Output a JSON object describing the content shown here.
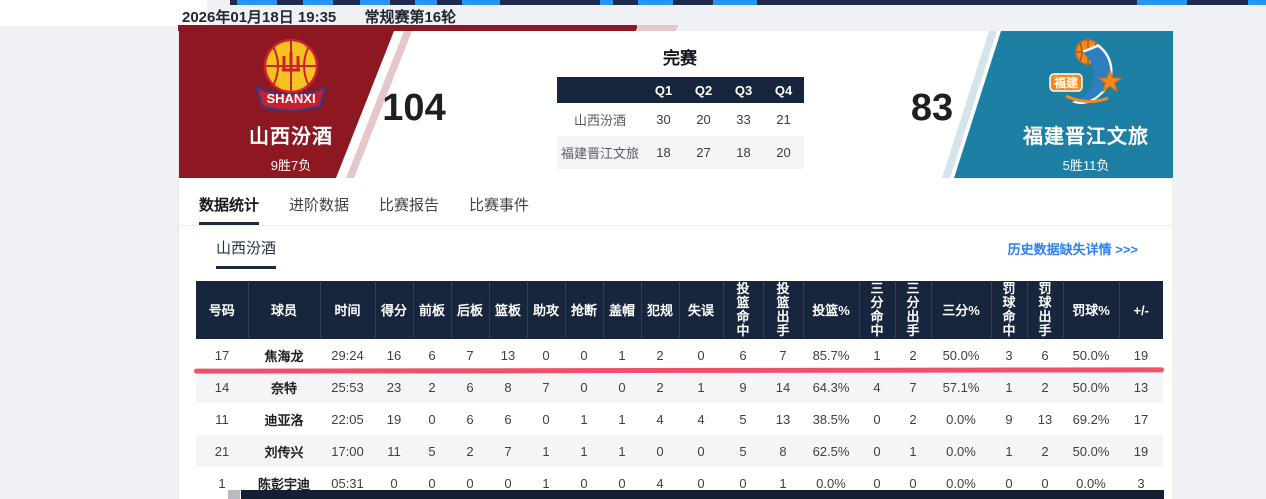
{
  "header": {
    "datetime": "2026年01月18日 19:35",
    "round": "常规赛第16轮"
  },
  "scoreboard": {
    "status": "完赛",
    "home": {
      "name": "山西汾酒",
      "record": "9胜7负",
      "score": "104",
      "logo_text": "SHANXI"
    },
    "away": {
      "name": "福建晋江文旅",
      "record": "5胜11负",
      "score": "83",
      "logo_text": "福建"
    },
    "quarters": {
      "headers": [
        "Q1",
        "Q2",
        "Q3",
        "Q4"
      ],
      "rows": [
        {
          "team": "山西汾酒",
          "scores": [
            "30",
            "20",
            "33",
            "21"
          ]
        },
        {
          "team": "福建晋江文旅",
          "scores": [
            "18",
            "27",
            "18",
            "20"
          ]
        }
      ]
    }
  },
  "tabs": [
    {
      "key": "stats",
      "label": "数据统计",
      "active": true
    },
    {
      "key": "advanced",
      "label": "进阶数据",
      "active": false
    },
    {
      "key": "report",
      "label": "比赛报告",
      "active": false
    },
    {
      "key": "events",
      "label": "比赛事件",
      "active": false
    }
  ],
  "section": {
    "team_tab": "山西汾酒",
    "history_link": "历史数据缺失详情 >>>"
  },
  "stats_table": {
    "columns": [
      "号码",
      "球员",
      "时间",
      "得分",
      "前板",
      "后板",
      "篮板",
      "助攻",
      "抢断",
      "盖帽",
      "犯规",
      "失误",
      "投篮命中",
      "投篮出手",
      "投篮%",
      "三分命中",
      "三分出手",
      "三分%",
      "罚球命中",
      "罚球出手",
      "罚球%",
      "+/-"
    ],
    "rows": [
      [
        "17",
        "焦海龙",
        "29:24",
        "16",
        "6",
        "7",
        "13",
        "0",
        "0",
        "1",
        "2",
        "0",
        "6",
        "7",
        "85.7%",
        "1",
        "2",
        "50.0%",
        "3",
        "6",
        "50.0%",
        "19"
      ],
      [
        "14",
        "奈特",
        "25:53",
        "23",
        "2",
        "6",
        "8",
        "7",
        "0",
        "0",
        "2",
        "1",
        "9",
        "14",
        "64.3%",
        "4",
        "7",
        "57.1%",
        "1",
        "2",
        "50.0%",
        "13"
      ],
      [
        "11",
        "迪亚洛",
        "22:05",
        "19",
        "0",
        "6",
        "6",
        "0",
        "1",
        "1",
        "4",
        "4",
        "5",
        "13",
        "38.5%",
        "0",
        "2",
        "0.0%",
        "9",
        "13",
        "69.2%",
        "17"
      ],
      [
        "21",
        "刘传兴",
        "17:00",
        "11",
        "5",
        "2",
        "7",
        "1",
        "1",
        "1",
        "0",
        "0",
        "5",
        "8",
        "62.5%",
        "0",
        "1",
        "0.0%",
        "1",
        "2",
        "50.0%",
        "19"
      ],
      [
        "1",
        "陈彭宇迪",
        "05:31",
        "0",
        "0",
        "0",
        "0",
        "1",
        "0",
        "0",
        "4",
        "0",
        "0",
        "1",
        "0.0%",
        "0",
        "0",
        "0.0%",
        "0",
        "0",
        "0.0%",
        "3"
      ]
    ]
  },
  "colors": {
    "home_panel": "#8d1822",
    "away_panel": "#1e7fa5",
    "table_header": "#17263c",
    "link": "#2c82f6",
    "annotation_line": "#f2506a",
    "top_nav_highlight": "#2794f2"
  }
}
